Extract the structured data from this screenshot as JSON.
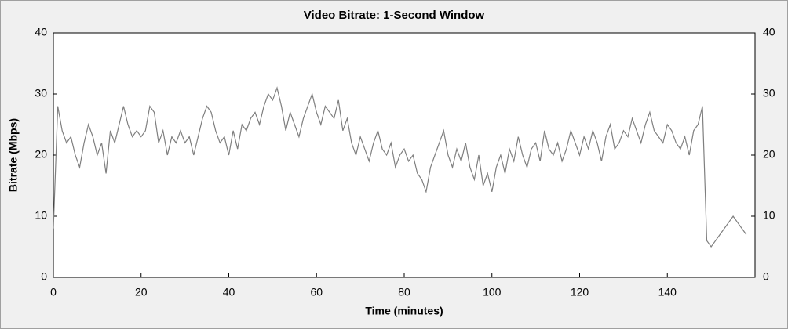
{
  "chart_data": {
    "type": "line",
    "title": "Video Bitrate: 1-Second Window",
    "x_label": "Time (minutes)",
    "y_label": "Bitrate (Mbps)",
    "x": [
      0,
      1,
      2,
      3,
      4,
      5,
      6,
      7,
      8,
      9,
      10,
      11,
      12,
      13,
      14,
      15,
      16,
      17,
      18,
      19,
      20,
      21,
      22,
      23,
      24,
      25,
      26,
      27,
      28,
      29,
      30,
      31,
      32,
      33,
      34,
      35,
      36,
      37,
      38,
      39,
      40,
      41,
      42,
      43,
      44,
      45,
      46,
      47,
      48,
      49,
      50,
      51,
      52,
      53,
      54,
      55,
      56,
      57,
      58,
      59,
      60,
      61,
      62,
      63,
      64,
      65,
      66,
      67,
      68,
      69,
      70,
      71,
      72,
      73,
      74,
      75,
      76,
      77,
      78,
      79,
      80,
      81,
      82,
      83,
      84,
      85,
      86,
      87,
      88,
      89,
      90,
      91,
      92,
      93,
      94,
      95,
      96,
      97,
      98,
      99,
      100,
      101,
      102,
      103,
      104,
      105,
      106,
      107,
      108,
      109,
      110,
      111,
      112,
      113,
      114,
      115,
      116,
      117,
      118,
      119,
      120,
      121,
      122,
      123,
      124,
      125,
      126,
      127,
      128,
      129,
      130,
      131,
      132,
      133,
      134,
      135,
      136,
      137,
      138,
      139,
      140,
      141,
      142,
      143,
      144,
      145,
      146,
      147,
      148,
      149,
      150,
      151,
      152,
      153,
      154,
      155,
      156,
      157,
      158
    ],
    "values": [
      8,
      28,
      24,
      22,
      23,
      20,
      18,
      22,
      25,
      23,
      20,
      22,
      17,
      24,
      22,
      25,
      28,
      25,
      23,
      24,
      23,
      24,
      28,
      27,
      22,
      24,
      20,
      23,
      22,
      24,
      22,
      23,
      20,
      23,
      26,
      28,
      27,
      24,
      22,
      23,
      20,
      24,
      21,
      25,
      24,
      26,
      27,
      25,
      28,
      30,
      29,
      31,
      28,
      24,
      27,
      25,
      23,
      26,
      28,
      30,
      27,
      25,
      28,
      27,
      26,
      29,
      24,
      26,
      22,
      20,
      23,
      21,
      19,
      22,
      24,
      21,
      20,
      22,
      18,
      20,
      21,
      19,
      20,
      17,
      16,
      14,
      18,
      20,
      22,
      24,
      20,
      18,
      21,
      19,
      22,
      18,
      16,
      20,
      15,
      17,
      14,
      18,
      20,
      17,
      21,
      19,
      23,
      20,
      18,
      21,
      22,
      19,
      24,
      21,
      20,
      22,
      19,
      21,
      24,
      22,
      20,
      23,
      21,
      24,
      22,
      19,
      23,
      25,
      21,
      22,
      24,
      23,
      26,
      24,
      22,
      25,
      27,
      24,
      23,
      22,
      25,
      24,
      22,
      21,
      23,
      20,
      24,
      25,
      28,
      6,
      5,
      6,
      7,
      8,
      9,
      10,
      9,
      8,
      7
    ],
    "color": "#7f7f7f",
    "xlim": [
      0,
      160
    ],
    "xticks": [
      0,
      20,
      40,
      60,
      80,
      100,
      120,
      140
    ],
    "ylim": [
      0,
      40
    ],
    "yticks": [
      0,
      10,
      20,
      30,
      40
    ],
    "y2lim": [
      0,
      40
    ],
    "y2ticks": [
      0,
      10,
      20,
      30,
      40
    ]
  }
}
